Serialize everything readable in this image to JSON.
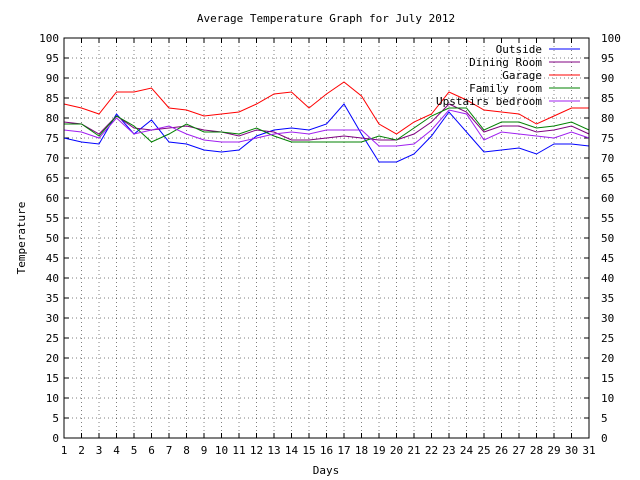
{
  "chart_data": {
    "type": "line",
    "title": "Average Temperature Graph for July 2012",
    "xlabel": "Days",
    "ylabel": "Temperature",
    "xlim": [
      1,
      31
    ],
    "ylim": [
      0,
      100
    ],
    "grid": true,
    "legend_position": "top-right",
    "x": [
      1,
      2,
      3,
      4,
      5,
      6,
      7,
      8,
      9,
      10,
      11,
      12,
      13,
      14,
      15,
      16,
      17,
      18,
      19,
      20,
      21,
      22,
      23,
      24,
      25,
      26,
      27,
      28,
      29,
      30,
      31
    ],
    "series": [
      {
        "name": "Outside",
        "color": "#0000ff",
        "values": [
          75,
          74,
          73.5,
          81,
          76,
          79.5,
          74,
          73.5,
          72,
          71.5,
          72,
          75.5,
          77,
          77.5,
          77,
          78.5,
          83.5,
          76,
          69,
          69,
          71,
          75.5,
          81.5,
          76.5,
          71.5,
          72,
          72.5,
          71,
          73.5,
          73.5,
          73
        ]
      },
      {
        "name": "Dining Room",
        "color": "#800080",
        "values": [
          79,
          78.5,
          76,
          80.5,
          77.5,
          77,
          77.5,
          78,
          77,
          76.5,
          75.5,
          77,
          76.5,
          74.5,
          74.5,
          75,
          75.5,
          75,
          74.5,
          74.5,
          76,
          79,
          83.5,
          81.5,
          76.5,
          78,
          78,
          76.5,
          77,
          78,
          76
        ]
      },
      {
        "name": "Garage",
        "color": "#ff0000",
        "values": [
          83.5,
          82.5,
          81,
          86.5,
          86.5,
          87.5,
          82.5,
          82,
          80.5,
          81,
          81.5,
          83.5,
          86,
          86.5,
          82.5,
          86,
          89,
          85.5,
          78.5,
          76,
          79,
          81,
          86.5,
          84.5,
          82,
          81.5,
          81,
          78.5,
          80.5,
          82.5,
          82.5
        ]
      },
      {
        "name": "Family room",
        "color": "#008000",
        "values": [
          78.5,
          78.5,
          75.5,
          80.5,
          78,
          74,
          76,
          78.5,
          76.5,
          76.5,
          76,
          77.5,
          75.5,
          74,
          74,
          74,
          74,
          74,
          75.5,
          74.5,
          77.5,
          80.5,
          82.5,
          82.5,
          77,
          79,
          79,
          77.5,
          78,
          79,
          77
        ]
      },
      {
        "name": "Upstairs bedroom",
        "color": "#a020f0",
        "values": [
          77,
          76.5,
          75,
          80,
          76,
          77,
          78,
          76,
          74.5,
          74,
          74,
          75,
          76,
          76.5,
          76,
          77,
          77,
          77,
          73,
          73,
          73.5,
          77,
          82,
          81,
          74.5,
          76.5,
          76,
          75.5,
          75,
          76.5,
          75
        ]
      }
    ]
  }
}
